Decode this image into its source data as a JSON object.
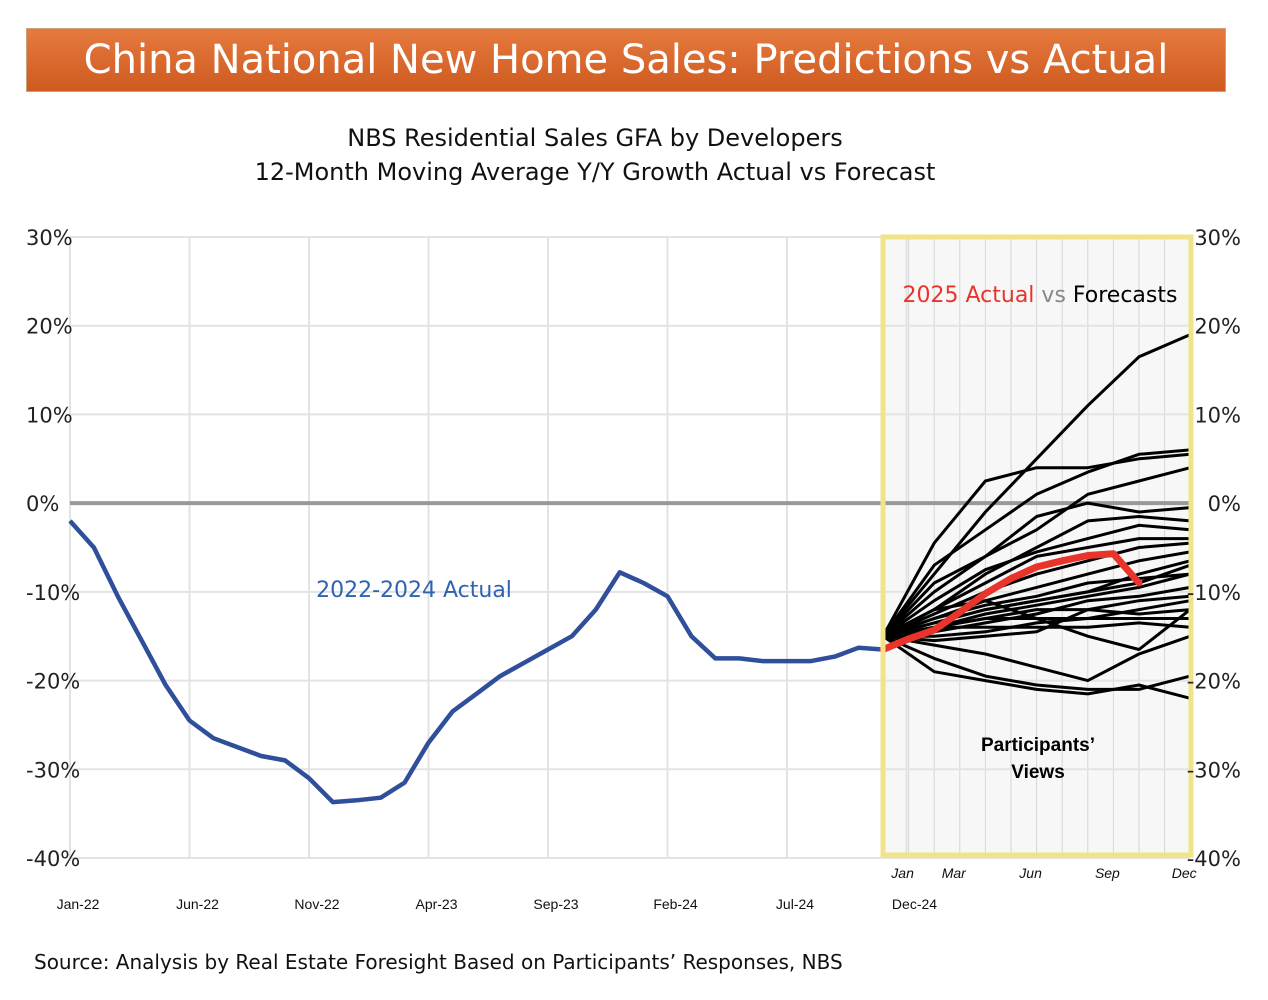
{
  "banner": {
    "title": "China National New Home Sales: Predictions vs Actual"
  },
  "header": {
    "subtitle_line1": "NBS Residential Sales GFA by Developers",
    "subtitle_line2": "12-Month Moving Average Y/Y Growth Actual vs Forecast"
  },
  "source": "Source: Analysis by Real Estate Foresight Based on Participants’ Responses, NBS",
  "colors": {
    "actual_hist": "#2f4f9a",
    "actual_2025": "#e8342a",
    "forecast": "#000000",
    "zero_line": "#999999",
    "highlight_border": "#f2e38a",
    "label_blue": "#2f63b0"
  },
  "chart_data": {
    "type": "line",
    "y_tick_labels": [
      "30%",
      "20%",
      "10%",
      "0%",
      "-10%",
      "-20%",
      "-30%",
      "-40%"
    ],
    "y_ticks": [
      30,
      20,
      10,
      0,
      -10,
      -20,
      -30,
      -40
    ],
    "ylim": [
      -40,
      30
    ],
    "x_tick_labels": [
      "Jan-22",
      "Jun-22",
      "Nov-22",
      "Apr-23",
      "Sep-23",
      "Feb-24",
      "Jul-24",
      "Dec-24"
    ],
    "x_tick_months": [
      0,
      5,
      10,
      15,
      20,
      25,
      30,
      35
    ],
    "forecast_x_labels": [
      "Jan",
      "Mar",
      "Jun",
      "Sep",
      "Dec"
    ],
    "forecast_x_months": [
      1,
      3,
      6,
      9,
      12
    ],
    "annotations": {
      "hist_label": "2022-2024 Actual",
      "legend_red": "2025 Actual",
      "legend_vs": "vs",
      "legend_black": "Forecasts",
      "views_line1": "Participants’",
      "views_line2": "Views"
    },
    "historical": {
      "name": "2022-2024 Actual",
      "months": [
        0,
        1,
        2,
        3,
        4,
        5,
        6,
        7,
        8,
        9,
        10,
        11,
        12,
        13,
        14,
        15,
        16,
        17,
        18,
        19,
        20,
        21,
        22,
        23,
        24,
        25,
        26,
        27,
        28,
        29,
        30,
        31,
        32,
        33,
        34
      ],
      "values": [
        -2,
        -5,
        -10.5,
        -15.5,
        -20.5,
        -24.5,
        -26.5,
        -27.5,
        -28.5,
        -29,
        -31,
        -33.7,
        -33.5,
        -33.2,
        -31.5,
        -27,
        -23.5,
        -21.5,
        -19.5,
        -18,
        -16.5,
        -15,
        -12,
        -7.8,
        -9,
        -10.5,
        -15,
        -17.5,
        -17.5,
        -17.8,
        -17.8,
        -17.8,
        -17.3,
        -16.3,
        -16.5
      ]
    },
    "actual_2025": {
      "name": "2025 Actual",
      "months": [
        0,
        1,
        2,
        3,
        4,
        5,
        6,
        7,
        8,
        9,
        10
      ],
      "values": [
        -16.5,
        -15.3,
        -14.3,
        -12.3,
        -10.2,
        -8.5,
        -7.2,
        -6.5,
        -5.9,
        -5.7,
        -9
      ]
    },
    "forecasts": [
      {
        "months": [
          0,
          2,
          4,
          6,
          8,
          10,
          12
        ],
        "values": [
          -15,
          -8,
          -1,
          5,
          11,
          16.5,
          19
        ]
      },
      {
        "months": [
          0,
          2,
          4,
          6,
          8,
          10,
          12
        ],
        "values": [
          -15,
          -4.5,
          2.5,
          4,
          4,
          5,
          5.5
        ]
      },
      {
        "months": [
          0,
          2,
          4,
          6,
          8,
          10,
          12
        ],
        "values": [
          -15,
          -7,
          -3,
          1,
          3.5,
          5.5,
          6
        ]
      },
      {
        "months": [
          0,
          2,
          4,
          6,
          8,
          10,
          12
        ],
        "values": [
          -15,
          -10,
          -6,
          -3,
          1,
          2.5,
          4
        ]
      },
      {
        "months": [
          0,
          2,
          4,
          6,
          8,
          10,
          12
        ],
        "values": [
          -15,
          -9,
          -6,
          -1.5,
          0,
          -1,
          -0.5
        ]
      },
      {
        "months": [
          0,
          2,
          4,
          6,
          8,
          10,
          12
        ],
        "values": [
          -15,
          -12,
          -8,
          -5,
          -2,
          -1.5,
          -2
        ]
      },
      {
        "months": [
          0,
          2,
          4,
          6,
          8,
          10,
          12
        ],
        "values": [
          -15,
          -11,
          -7.5,
          -5.5,
          -4,
          -2.5,
          -3
        ]
      },
      {
        "months": [
          0,
          2,
          4,
          6,
          8,
          10,
          12
        ],
        "values": [
          -15,
          -12,
          -9,
          -6,
          -5,
          -4,
          -4
        ]
      },
      {
        "months": [
          0,
          2,
          4,
          6,
          8,
          10,
          12
        ],
        "values": [
          -15,
          -12.5,
          -10,
          -8,
          -6.5,
          -5,
          -4.5
        ]
      },
      {
        "months": [
          0,
          2,
          4,
          6,
          8,
          10,
          12
        ],
        "values": [
          -15,
          -13,
          -11,
          -9.5,
          -8,
          -6.5,
          -5.5
        ]
      },
      {
        "months": [
          0,
          2,
          4,
          6,
          8,
          10,
          12
        ],
        "values": [
          -15,
          -13.5,
          -12,
          -11,
          -10,
          -8,
          -6.5
        ]
      },
      {
        "months": [
          0,
          2,
          4,
          6,
          8,
          10,
          12
        ],
        "values": [
          -15,
          -14,
          -12.5,
          -11.5,
          -10.5,
          -9.5,
          -8
        ]
      },
      {
        "months": [
          0,
          2,
          4,
          6,
          8,
          10,
          12
        ],
        "values": [
          -15,
          -14.5,
          -13.5,
          -12.5,
          -11,
          -10.5,
          -9.5
        ]
      },
      {
        "months": [
          0,
          2,
          4,
          6,
          8,
          10,
          12
        ],
        "values": [
          -15,
          -14,
          -13,
          -12,
          -12,
          -11,
          -10.5
        ]
      },
      {
        "months": [
          0,
          2,
          4,
          6,
          8,
          10,
          12
        ],
        "values": [
          -15,
          -15,
          -14.5,
          -13.5,
          -13,
          -12,
          -11
        ]
      },
      {
        "months": [
          0,
          2,
          4,
          6,
          8,
          10,
          12
        ],
        "values": [
          -15,
          -14,
          -13,
          -13,
          -13,
          -13,
          -13
        ]
      },
      {
        "months": [
          0,
          2,
          4,
          6,
          8,
          10,
          12
        ],
        "values": [
          -15,
          -15.5,
          -15,
          -14.5,
          -12,
          -12.5,
          -12
        ]
      },
      {
        "months": [
          0,
          2,
          4,
          6,
          8,
          10,
          12
        ],
        "values": [
          -15,
          -12,
          -11,
          -13,
          -15,
          -16.5,
          -12
        ]
      },
      {
        "months": [
          0,
          2,
          4,
          6,
          8,
          10,
          12
        ],
        "values": [
          -15,
          -14,
          -14,
          -14,
          -14,
          -13.5,
          -14
        ]
      },
      {
        "months": [
          0,
          2,
          4,
          6,
          8,
          10,
          12
        ],
        "values": [
          -15,
          -16,
          -17,
          -18.5,
          -20,
          -17,
          -15
        ]
      },
      {
        "months": [
          0,
          2,
          4,
          6,
          8,
          10,
          12
        ],
        "values": [
          -15,
          -17.5,
          -19.5,
          -20.5,
          -21,
          -21,
          -19.5
        ]
      },
      {
        "months": [
          0,
          2,
          4,
          6,
          8,
          10,
          12
        ],
        "values": [
          -15,
          -19,
          -20,
          -21,
          -21.5,
          -20.5,
          -22
        ]
      },
      {
        "months": [
          0,
          2,
          4,
          6,
          8,
          10,
          12
        ],
        "values": [
          -15,
          -13,
          -11.5,
          -10.5,
          -9,
          -8.5,
          -8
        ]
      },
      {
        "months": [
          0,
          2,
          4,
          6,
          8,
          10,
          12
        ],
        "values": [
          -15,
          -13.5,
          -12,
          -11,
          -10,
          -9,
          -7
        ]
      }
    ]
  }
}
